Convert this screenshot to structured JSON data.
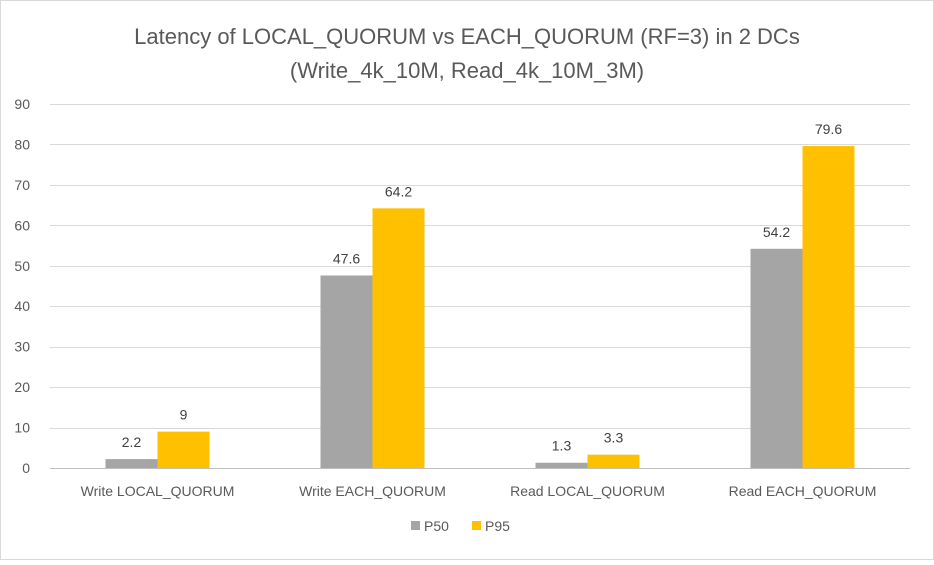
{
  "chart_data": {
    "type": "bar",
    "title": "Latency of LOCAL_QUORUM vs EACH_QUORUM (RF=3) in 2 DCs",
    "subtitle": "(Write_4k_10M, Read_4k_10M_3M)",
    "categories": [
      "Write LOCAL_QUORUM",
      "Write EACH_QUORUM",
      "Read LOCAL_QUORUM",
      "Read EACH_QUORUM"
    ],
    "series": [
      {
        "name": "P50",
        "values": [
          2.2,
          47.6,
          1.3,
          54.2
        ],
        "color": "#a5a5a5"
      },
      {
        "name": "P95",
        "values": [
          9,
          64.2,
          3.3,
          79.6
        ],
        "color": "#ffc000"
      }
    ],
    "value_labels": [
      [
        "2.2",
        "47.6",
        "1.3",
        "54.2"
      ],
      [
        "9",
        "64.2",
        "3.3",
        "79.6"
      ]
    ],
    "ylim": [
      0,
      90
    ],
    "yticks": [
      0,
      10,
      20,
      30,
      40,
      50,
      60,
      70,
      80,
      90
    ],
    "ytick_labels": [
      "0",
      "10",
      "20",
      "30",
      "40",
      "50",
      "60",
      "70",
      "80",
      "90"
    ],
    "grid": true,
    "legend_position": "bottom",
    "xlabel": "",
    "ylabel": ""
  }
}
